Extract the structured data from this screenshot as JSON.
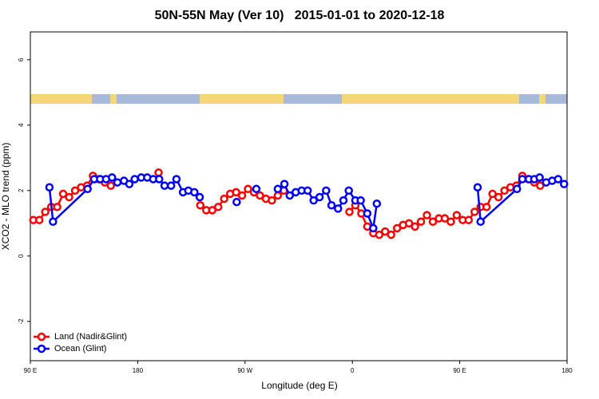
{
  "chart_data": {
    "type": "line",
    "title": "50N-55N May (Ver 10)   2015-01-01 to 2020-12-18",
    "xlabel": "Longitude (deg E)",
    "ylabel": "XCO2 - MLO trend (ppm)",
    "xlim": [
      90,
      540
    ],
    "xticks": [
      {
        "value": 90,
        "label": "90 E"
      },
      {
        "value": 180,
        "label": "180"
      },
      {
        "value": 270,
        "label": "90 W"
      },
      {
        "value": 360,
        "label": "0"
      },
      {
        "value": 450,
        "label": "90 E"
      },
      {
        "value": 540,
        "label": "180"
      }
    ],
    "ylim": [
      -3.2,
      6.85
    ],
    "yticks": [
      -2,
      0,
      2,
      4,
      6
    ],
    "legend": "bottom-left",
    "series": [
      {
        "name": "Land (Nadir&Glint)",
        "color": "#ff0000",
        "x": [
          92.5,
          97.5,
          102.5,
          107.5,
          112.5,
          117.5,
          122.5,
          127.5,
          132.5,
          137.5,
          142.5,
          147.5,
          152.5,
          157.5,
          null,
          197.5,
          null,
          232.5,
          237.5,
          242.5,
          247.5,
          252.5,
          257.5,
          262.5,
          267.5,
          272.5,
          277.5,
          282.5,
          287.5,
          292.5,
          297.5,
          302.5,
          null,
          357.5,
          362.5,
          367.5,
          372.5,
          377.5,
          382.5,
          387.5,
          392.5,
          397.5,
          402.5,
          407.5,
          412.5,
          417.5,
          422.5,
          427.5,
          432.5,
          437.5,
          442.5,
          447.5,
          452.5,
          457.5,
          462.5,
          467.5,
          472.5,
          477.5,
          482.5,
          487.5,
          492.5,
          497.5,
          502.5,
          507.5,
          512.5,
          517.5
        ],
        "values": [
          1.1,
          1.1,
          1.35,
          1.5,
          1.5,
          1.9,
          1.8,
          2.0,
          2.1,
          2.15,
          2.45,
          2.35,
          2.25,
          2.15,
          null,
          2.55,
          null,
          1.55,
          1.4,
          1.4,
          1.5,
          1.75,
          1.9,
          1.95,
          1.85,
          2.05,
          1.95,
          1.85,
          1.75,
          1.7,
          1.85,
          2.0,
          null,
          1.35,
          1.55,
          1.3,
          0.9,
          0.7,
          0.65,
          0.75,
          0.65,
          0.85,
          0.95,
          1.0,
          0.9,
          1.05,
          1.25,
          1.05,
          1.15,
          1.15,
          1.05,
          1.25,
          1.1,
          1.1,
          1.35,
          1.5,
          1.5,
          1.9,
          1.8,
          2.0,
          2.1,
          2.15,
          2.45,
          2.35,
          2.25,
          2.15
        ]
      },
      {
        "name": "Ocean (Glint)",
        "color": "#0000ff",
        "x": [
          106,
          109,
          138,
          143.5,
          148.5,
          153.5,
          158.5,
          163,
          168.5,
          173,
          177.5,
          183,
          188,
          193,
          198,
          202.5,
          208,
          212.5,
          218,
          222.5,
          227.5,
          232,
          null,
          263,
          null,
          279.5,
          null,
          297.5,
          303,
          307.5,
          312.5,
          317.5,
          322.5,
          327.5,
          332.5,
          338,
          342.5,
          348,
          352.5,
          357,
          362.5,
          367,
          372.5,
          377.5,
          380.5,
          null,
          465,
          467.5,
          498,
          502.5,
          508,
          512.5,
          517,
          522.5,
          527.5,
          532.5,
          537.5
        ],
        "values": [
          2.1,
          1.05,
          2.05,
          2.35,
          2.35,
          2.35,
          2.4,
          2.25,
          2.3,
          2.2,
          2.35,
          2.4,
          2.4,
          2.35,
          2.35,
          2.15,
          2.15,
          2.35,
          1.95,
          2.0,
          1.95,
          1.8,
          null,
          1.65,
          null,
          2.05,
          null,
          2.05,
          2.2,
          1.85,
          1.95,
          2.0,
          2.0,
          1.7,
          1.8,
          2.0,
          1.55,
          1.45,
          1.7,
          2.0,
          1.7,
          1.7,
          1.3,
          0.85,
          1.6,
          null,
          2.1,
          1.05,
          2.05,
          2.35,
          2.35,
          2.35,
          2.4,
          2.25,
          2.3,
          2.35,
          2.2
        ]
      }
    ]
  }
}
